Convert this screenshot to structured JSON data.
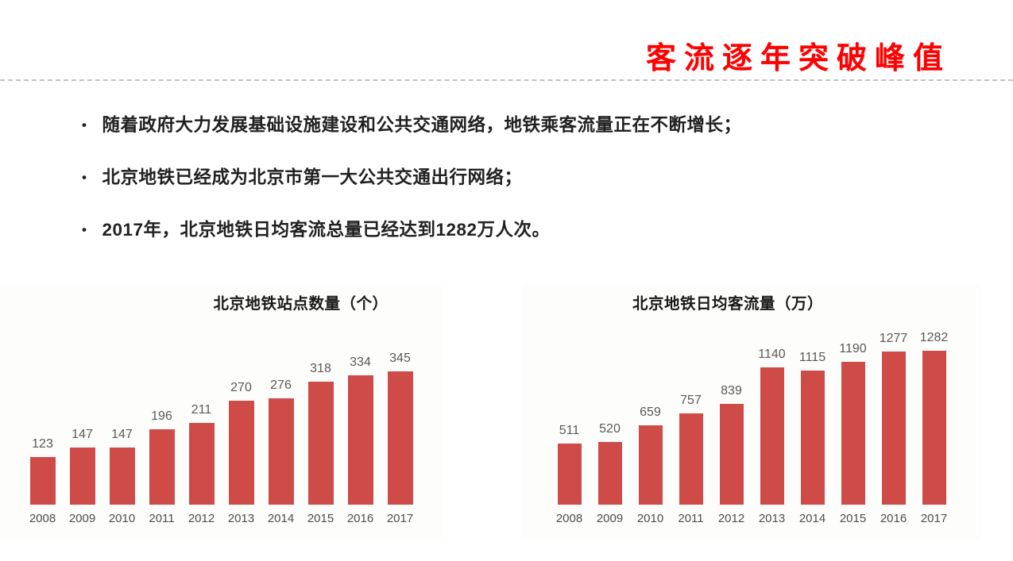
{
  "slide": {
    "title": "客流逐年突破峰值",
    "bullet_char": "•",
    "bullets": [
      {
        "text": "随着政府大力发展基础设施建设和公共交通网络，地铁乘客流量正在不断增长；"
      },
      {
        "text": "北京地铁已经成为北京市第一大公共交通出行网络；"
      },
      {
        "text": "2017年，北京地铁日均客流总量已经达到1282万人次。"
      }
    ],
    "colors": {
      "title_red": "#fe0000",
      "bar_red": "#cf4b48",
      "value_label_gray": "#595959",
      "axis_label_gray": "#4d4d4d",
      "body_text": "#212121"
    }
  },
  "chart_data": [
    {
      "type": "bar",
      "title": "北京地铁站点数量（个）",
      "categories": [
        "2008",
        "2009",
        "2010",
        "2011",
        "2012",
        "2013",
        "2014",
        "2015",
        "2016",
        "2017"
      ],
      "values": [
        123,
        147,
        147,
        196,
        211,
        270,
        276,
        318,
        334,
        345
      ],
      "xlabel": "",
      "ylabel": "",
      "ylim": [
        0,
        345
      ],
      "grid": false,
      "legend": "none",
      "data_labels": true
    },
    {
      "type": "bar",
      "title": "北京地铁日均客流量（万）",
      "categories": [
        "2008",
        "2009",
        "2010",
        "2011",
        "2012",
        "2013",
        "2014",
        "2015",
        "2016",
        "2017"
      ],
      "values": [
        511,
        520,
        659,
        757,
        839,
        1140,
        1115,
        1190,
        1277,
        1282
      ],
      "xlabel": "",
      "ylabel": "",
      "ylim": [
        0,
        1282
      ],
      "grid": false,
      "legend": "none",
      "data_labels": true
    }
  ]
}
